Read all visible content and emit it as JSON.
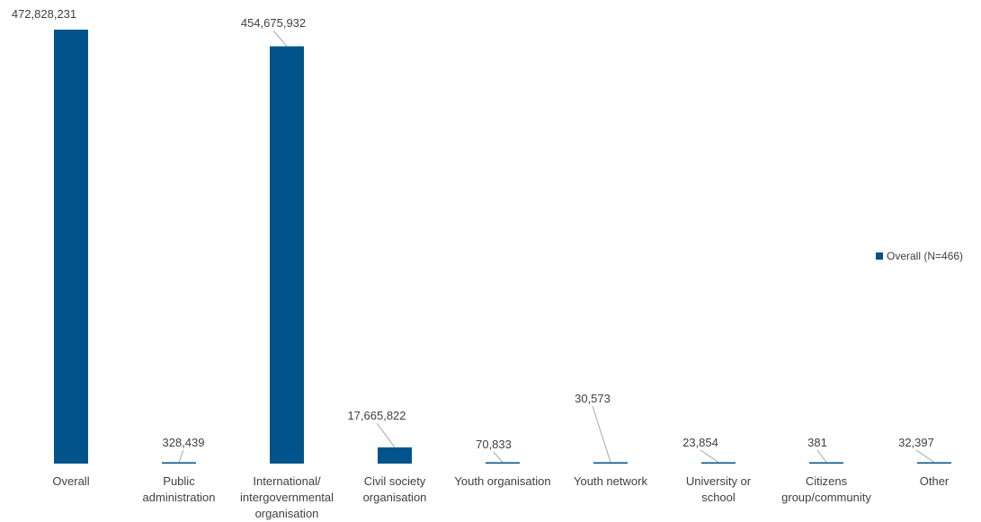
{
  "chart_data": {
    "type": "bar",
    "categories": [
      [
        "Overall"
      ],
      [
        "Public",
        "administration"
      ],
      [
        "International/",
        "intergovernmental",
        "organisation"
      ],
      [
        "Civil society",
        "organisation"
      ],
      [
        "Youth organisation"
      ],
      [
        "Youth network"
      ],
      [
        "University or",
        "school"
      ],
      [
        "Citizens",
        "group/community"
      ],
      [
        "Other"
      ]
    ],
    "series": [
      {
        "name": "Overall (N=466)",
        "values": [
          472828231,
          328439,
          454675932,
          17665822,
          70833,
          30573,
          23854,
          381,
          32397
        ]
      }
    ],
    "value_labels": [
      "472,828,231",
      "328,439",
      "454,675,932",
      "17,665,822",
      "70,833",
      "30,573",
      "23,854",
      "381",
      "32,397"
    ],
    "ylim": [
      0,
      472828231
    ],
    "grid": false,
    "legend_position": "right"
  },
  "colors": {
    "bar": "#00538B",
    "leader_line": "#A6A6A6",
    "text": "#404040"
  }
}
